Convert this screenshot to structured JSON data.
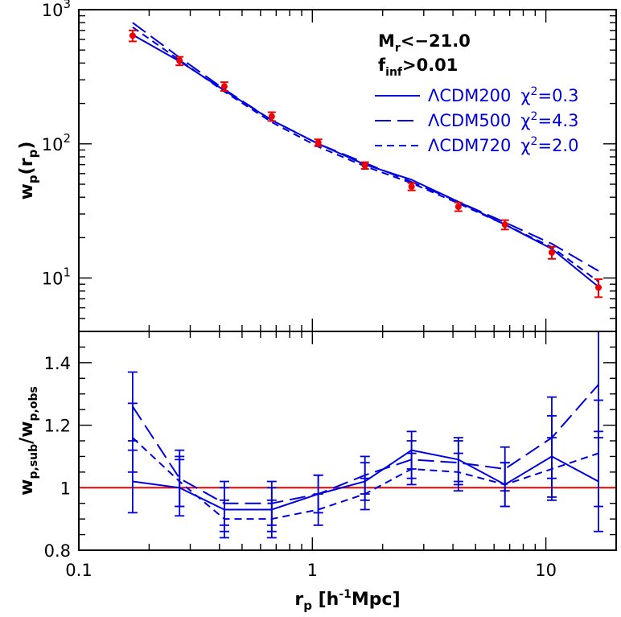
{
  "chart_data": [
    {
      "type": "line",
      "panel": "top",
      "ylabel_main": "w",
      "ylabel_sub": "p",
      "ylabel_paren_open": "(r",
      "ylabel_paren_sub": "p",
      "ylabel_paren_close": ")",
      "xscale": "log",
      "yscale": "log",
      "xlim": [
        0.1,
        20
      ],
      "ylim": [
        4.0,
        1000
      ],
      "yticks": [
        {
          "base": "10",
          "exp": "1",
          "value": 10
        },
        {
          "base": "10",
          "exp": "2",
          "value": 100
        },
        {
          "base": "10",
          "exp": "3",
          "value": 1000
        }
      ],
      "annotations": {
        "mr_main": "M",
        "mr_sub": "r",
        "mr_rest": "<−21.0",
        "finf_main": "f",
        "finf_sub": "inf",
        "finf_rest": ">0.01"
      },
      "observed": {
        "color": "#ee0000",
        "x": [
          0.17,
          0.27,
          0.42,
          0.67,
          1.06,
          1.68,
          2.66,
          4.22,
          6.68,
          10.6,
          16.8
        ],
        "y": [
          640,
          415,
          268,
          160,
          102,
          69,
          48,
          34,
          25,
          15.5,
          8.5
        ],
        "err": [
          60,
          30,
          20,
          12,
          6,
          4,
          3,
          2.5,
          2,
          1.6,
          1.3
        ]
      },
      "series": [
        {
          "name": "ΛCDM200",
          "chi2_label": "χ",
          "chi2_exp": "2",
          "chi2_val": "=0.3",
          "style": "solid",
          "color": "#0000dd",
          "x": [
            0.17,
            0.27,
            0.42,
            0.67,
            1.06,
            1.68,
            2.66,
            4.22,
            6.68,
            10.6,
            16.8
          ],
          "y": [
            650,
            412,
            250,
            150,
            100,
            70,
            54,
            37,
            25,
            16.5,
            8.6
          ]
        },
        {
          "name": "ΛCDM500",
          "chi2_label": "χ",
          "chi2_exp": "2",
          "chi2_val": "=4.3",
          "style": "long-dash",
          "color": "#0000dd",
          "x": [
            0.17,
            0.27,
            0.42,
            0.67,
            1.06,
            1.68,
            2.66,
            4.22,
            6.68,
            10.6,
            16.8
          ],
          "y": [
            800,
            440,
            255,
            150,
            100,
            72,
            52,
            37,
            26,
            18,
            11.3
          ]
        },
        {
          "name": "ΛCDM720",
          "chi2_label": "χ",
          "chi2_exp": "2",
          "chi2_val": "=2.0",
          "style": "short-dash",
          "color": "#0000dd",
          "x": [
            0.17,
            0.27,
            0.42,
            0.67,
            1.06,
            1.68,
            2.66,
            4.22,
            6.68,
            10.6,
            16.8
          ],
          "y": [
            740,
            420,
            245,
            145,
            95,
            68,
            51,
            36,
            25,
            17,
            9.4
          ]
        }
      ]
    },
    {
      "type": "line",
      "panel": "bottom",
      "ylabel_a": "w",
      "ylabel_a_sub": "p,sub",
      "ylabel_slash": "/",
      "ylabel_b": "w",
      "ylabel_b_sub": "p,obs",
      "xlabel_main": "r",
      "xlabel_sub": "p",
      "xlabel_rest": " [h",
      "xlabel_exp": "-1",
      "xlabel_end": "Mpc]",
      "xscale": "log",
      "xlim": [
        0.1,
        20
      ],
      "ylim": [
        0.8,
        1.5
      ],
      "xticks": [
        {
          "label": "0.1",
          "value": 0.1
        },
        {
          "label": "1",
          "value": 1
        },
        {
          "label": "10",
          "value": 10
        }
      ],
      "yticks": [
        {
          "label": "0.8",
          "value": 0.8
        },
        {
          "label": "1",
          "value": 1.0
        },
        {
          "label": "1.2",
          "value": 1.2
        },
        {
          "label": "1.4",
          "value": 1.4
        }
      ],
      "reference_line": {
        "y": 1.0,
        "color": "#ee0000"
      },
      "series": [
        {
          "name": "ΛCDM200",
          "style": "solid",
          "color": "#0000dd",
          "x": [
            0.17,
            0.27,
            0.42,
            0.67,
            1.06,
            1.68,
            2.66,
            4.22,
            6.68,
            10.6,
            16.8
          ],
          "y": [
            1.02,
            1.0,
            0.93,
            0.93,
            0.98,
            1.02,
            1.12,
            1.09,
            1.01,
            1.1,
            1.02
          ],
          "err": [
            0.1,
            0.09,
            0.07,
            0.07,
            0.06,
            0.06,
            0.06,
            0.07,
            0.07,
            0.13,
            0.16
          ]
        },
        {
          "name": "ΛCDM500",
          "style": "long-dash",
          "color": "#0000dd",
          "x": [
            0.17,
            0.27,
            0.42,
            0.67,
            1.06,
            1.68,
            2.66,
            4.22,
            6.68,
            10.6,
            16.8
          ],
          "y": [
            1.26,
            1.03,
            0.95,
            0.95,
            0.98,
            1.04,
            1.09,
            1.08,
            1.06,
            1.16,
            1.33
          ],
          "err": [
            0.11,
            0.09,
            0.07,
            0.07,
            0.06,
            0.06,
            0.06,
            0.07,
            0.07,
            0.13,
            0.17
          ]
        },
        {
          "name": "ΛCDM720",
          "style": "short-dash",
          "color": "#0000dd",
          "x": [
            0.17,
            0.27,
            0.42,
            0.67,
            1.06,
            1.68,
            2.66,
            4.22,
            6.68,
            10.6,
            16.8
          ],
          "y": [
            1.16,
            1.02,
            0.9,
            0.9,
            0.93,
            0.98,
            1.06,
            1.05,
            1.01,
            1.06,
            1.11
          ],
          "err": [
            0.11,
            0.08,
            0.06,
            0.06,
            0.05,
            0.05,
            0.05,
            0.06,
            0.07,
            0.1,
            0.17
          ]
        }
      ]
    }
  ]
}
